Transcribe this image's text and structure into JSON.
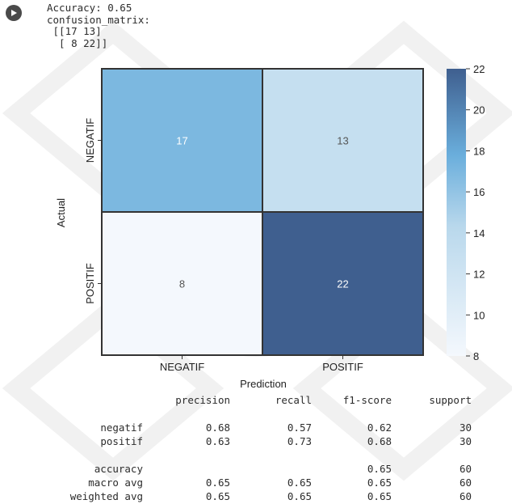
{
  "output": {
    "accuracy_line": "Accuracy: 0.65",
    "cm_title": "confusion_matrix:",
    "cm_row1": " [[17 13]",
    "cm_row2": "  [ 8 22]]"
  },
  "chart_data": {
    "type": "heatmap",
    "x_categories": [
      "NEGATIF",
      "POSITIF"
    ],
    "y_categories": [
      "NEGATIF",
      "POSITIF"
    ],
    "values": [
      [
        17,
        13
      ],
      [
        8,
        22
      ]
    ],
    "xlabel": "Prediction",
    "ylabel": "Actual",
    "colorbar": {
      "min": 8,
      "max": 22,
      "ticks": [
        8,
        10,
        12,
        14,
        16,
        18,
        20,
        22
      ]
    },
    "colors": {
      "low": "#f4f8fd",
      "mid": "#6aaedc",
      "high": "#3f5f8f"
    }
  },
  "report": {
    "headers": [
      "precision",
      "recall",
      "f1-score",
      "support"
    ],
    "rows": [
      {
        "label": "negatif",
        "precision": "0.68",
        "recall": "0.57",
        "f1": "0.62",
        "support": "30"
      },
      {
        "label": "positif",
        "precision": "0.63",
        "recall": "0.73",
        "f1": "0.68",
        "support": "30"
      }
    ],
    "accuracy": {
      "label": "accuracy",
      "f1": "0.65",
      "support": "60"
    },
    "summary": [
      {
        "label": "macro avg",
        "precision": "0.65",
        "recall": "0.65",
        "f1": "0.65",
        "support": "60"
      },
      {
        "label": "weighted avg",
        "precision": "0.65",
        "recall": "0.65",
        "f1": "0.65",
        "support": "60"
      }
    ]
  }
}
